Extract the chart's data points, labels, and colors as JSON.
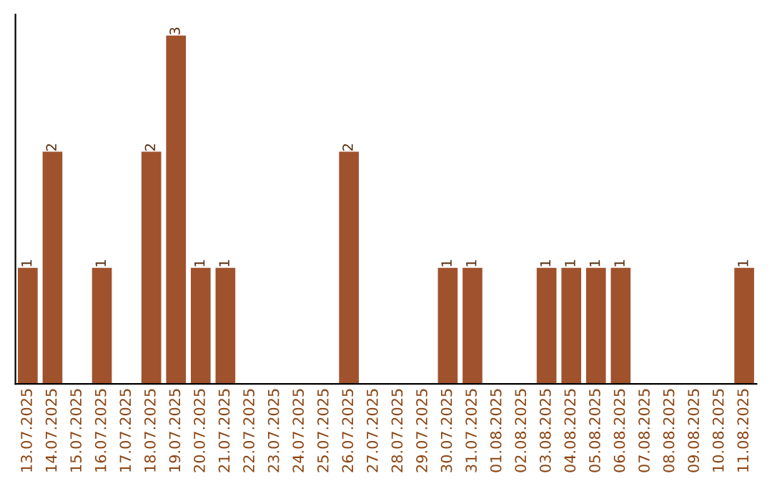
{
  "chart_data": {
    "type": "bar",
    "categories": [
      "13.07.2025",
      "14.07.2025",
      "15.07.2025",
      "16.07.2025",
      "17.07.2025",
      "18.07.2025",
      "19.07.2025",
      "20.07.2025",
      "21.07.2025",
      "22.07.2025",
      "23.07.2025",
      "24.07.2025",
      "25.07.2025",
      "26.07.2025",
      "27.07.2025",
      "28.07.2025",
      "29.07.2025",
      "30.07.2025",
      "31.07.2025",
      "01.08.2025",
      "02.08.2025",
      "03.08.2025",
      "04.08.2025",
      "05.08.2025",
      "06.08.2025",
      "07.08.2025",
      "08.08.2025",
      "09.08.2025",
      "10.08.2025",
      "11.08.2025"
    ],
    "values": [
      1,
      2,
      0,
      1,
      0,
      2,
      3,
      1,
      1,
      0,
      0,
      0,
      0,
      2,
      0,
      0,
      0,
      1,
      1,
      0,
      0,
      1,
      1,
      1,
      1,
      0,
      0,
      0,
      0,
      1
    ],
    "value_labels": [
      "1",
      "2",
      null,
      "1",
      null,
      "2",
      "3",
      "1",
      "1",
      null,
      null,
      null,
      null,
      "2",
      null,
      null,
      null,
      "1",
      "1",
      null,
      null,
      "1",
      "1",
      "1",
      "1",
      null,
      null,
      null,
      null,
      "1"
    ],
    "color": "#a0522d",
    "tick_labels": "x",
    "grid": false,
    "legend": false
  }
}
